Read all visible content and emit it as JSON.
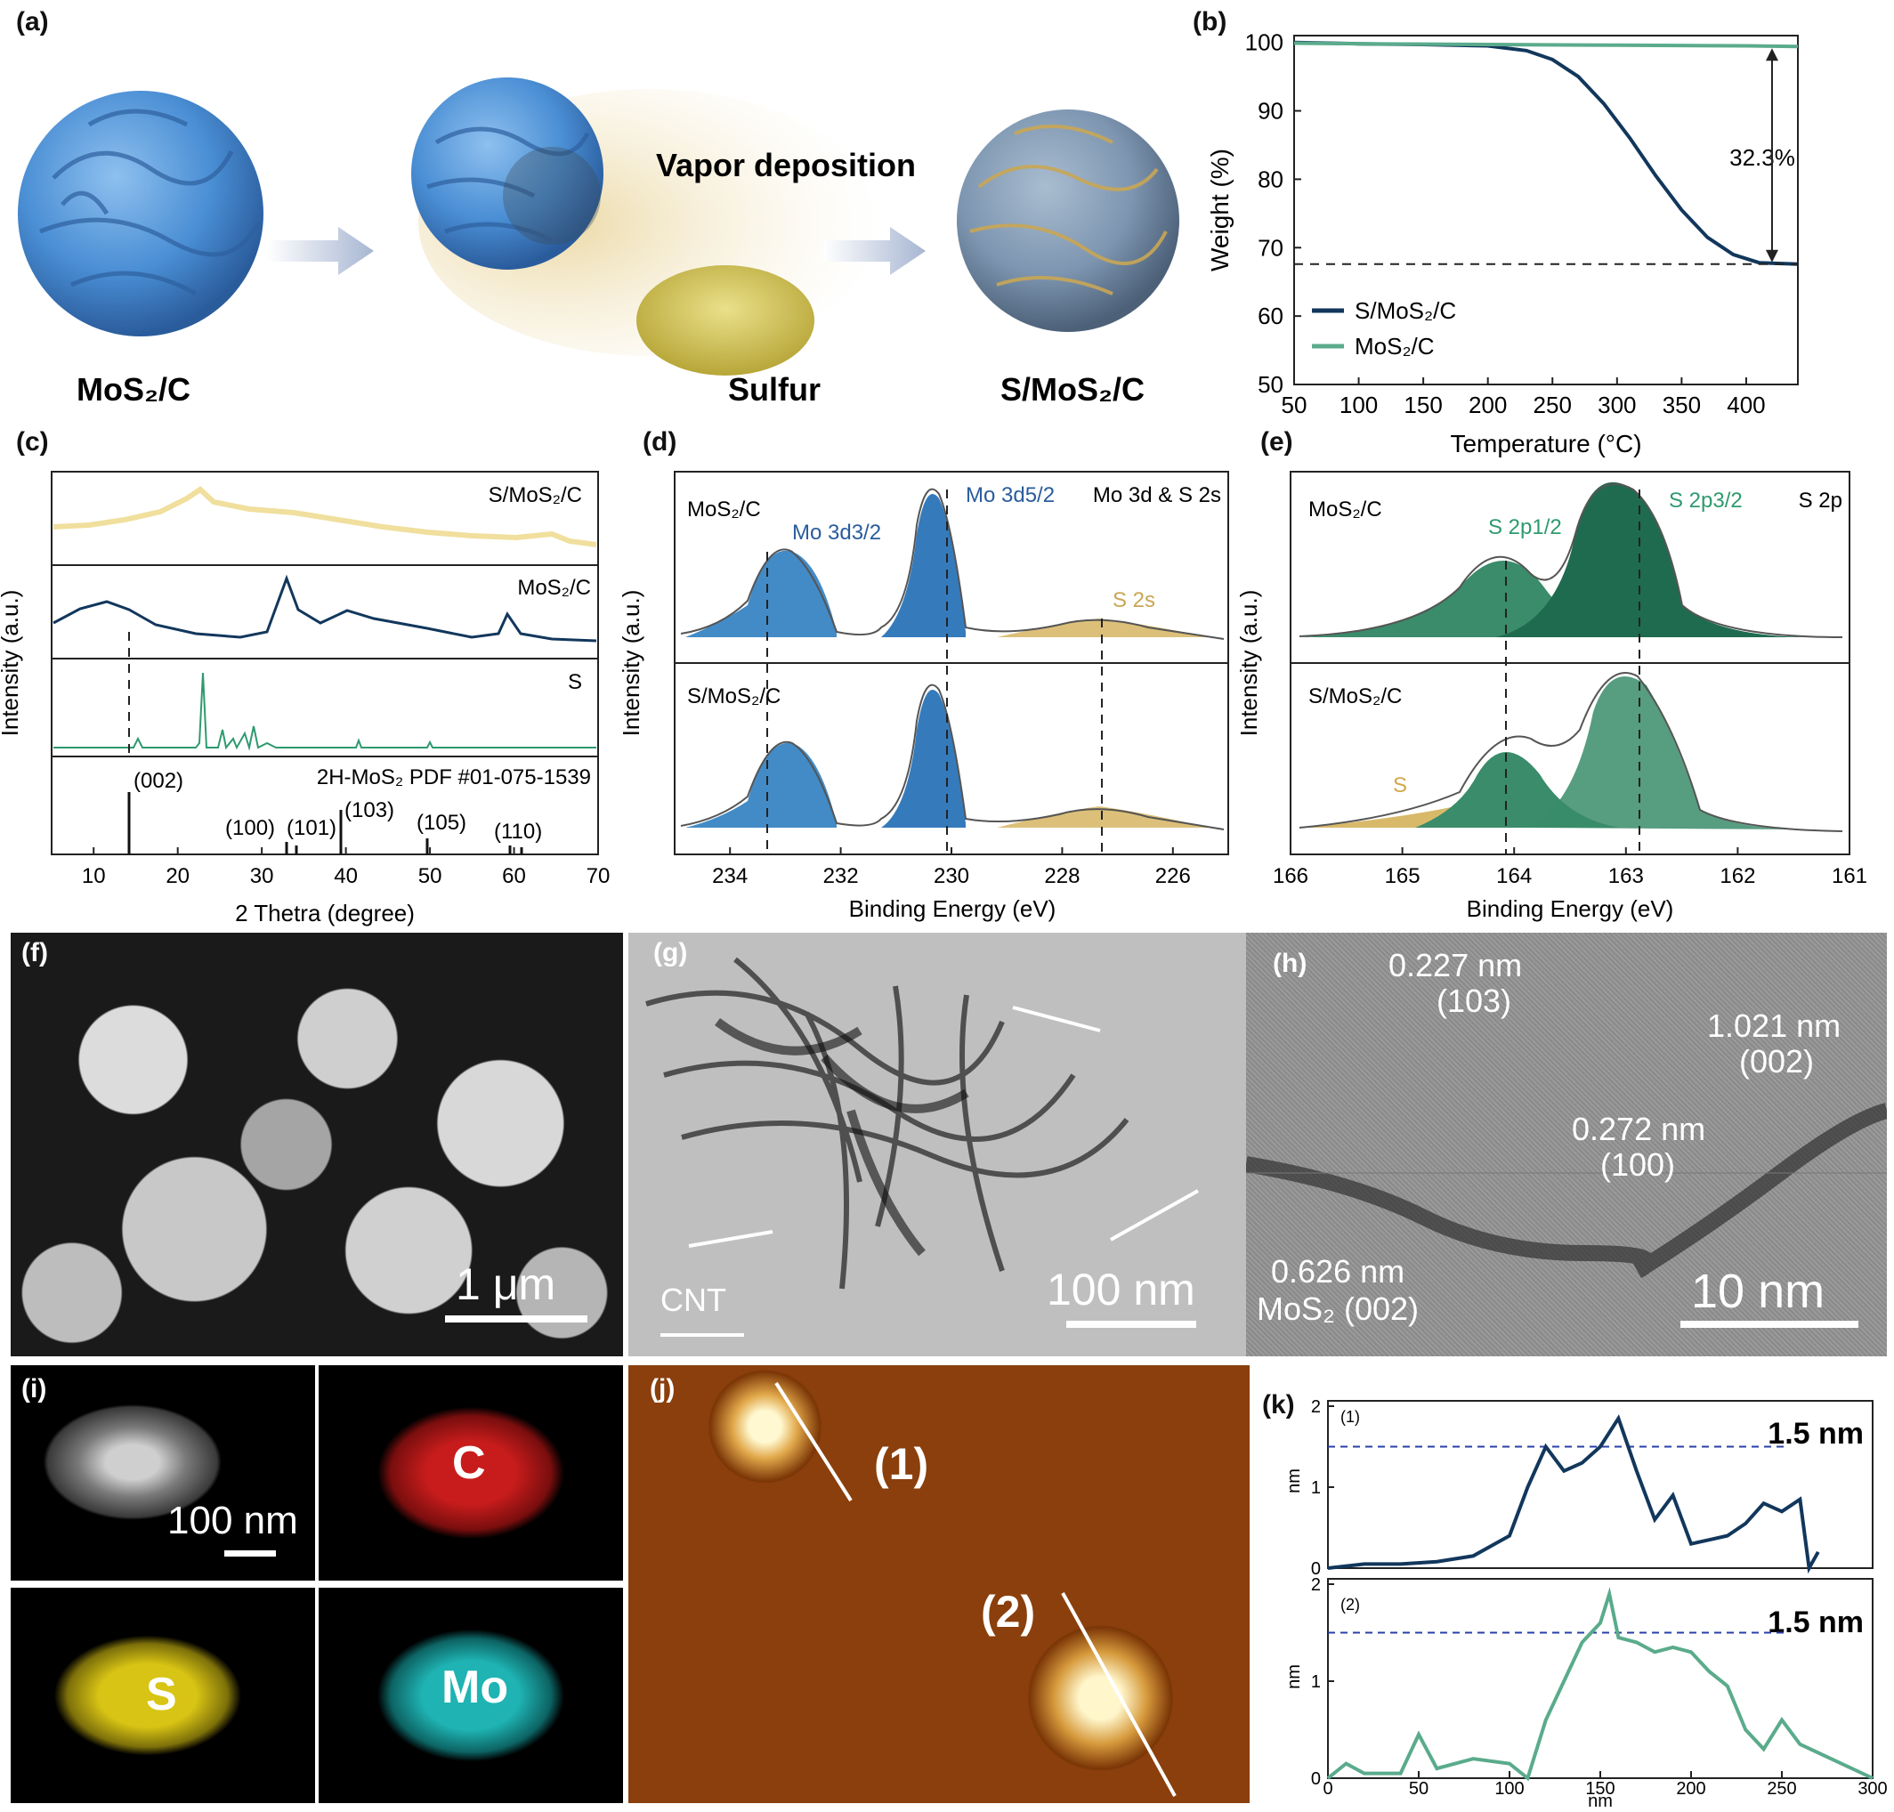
{
  "panel_labels": {
    "a": "(a)",
    "b": "(b)",
    "c": "(c)",
    "d": "(d)",
    "e": "(e)",
    "f": "(f)",
    "g": "(g)",
    "h": "(h)",
    "i": "(i)",
    "j": "(j)",
    "k": "(k)"
  },
  "colors": {
    "navy": "#12375c",
    "teal": "#5aab8c",
    "tealdark": "#1f6b4f",
    "blue": "#2f7ec0",
    "gold": "#d8b96a",
    "yellow": "#f0df9d",
    "sem": "#9a9a9a",
    "afm": "#8b3a08"
  },
  "a": {
    "label_mos2c": "MoS₂/C",
    "label_sulfur": "Sulfur",
    "label_smos2c": "S/MoS₂/C",
    "vapor": "Vapor deposition"
  },
  "b": {
    "xlabel": "Temperature (°C)",
    "ylabel": "Weight (%)",
    "annotation": "32.3%",
    "legend": [
      "S/MoS₂/C",
      "MoS₂/C"
    ],
    "xticks": [
      "50",
      "100",
      "150",
      "200",
      "250",
      "300",
      "350",
      "400"
    ],
    "yticks": [
      "50",
      "60",
      "70",
      "80",
      "90",
      "100"
    ]
  },
  "c": {
    "xlabel": "2 Thetra (degree)",
    "ylabel": "Intensity (a.u.)",
    "xticks": [
      "10",
      "20",
      "30",
      "40",
      "50",
      "60",
      "70"
    ],
    "traces": [
      "S/MoS₂/C",
      "MoS₂/C",
      "S"
    ],
    "pdf_label": "2H-MoS₂ PDF #01-075-1539",
    "peaks": [
      "(002)",
      "(100)",
      "(101)",
      "(103)",
      "(105)",
      "(110)"
    ]
  },
  "d": {
    "xlabel": "Binding Energy (eV)",
    "ylabel": "Intensity (a.u.)",
    "xticks": [
      "234",
      "232",
      "230",
      "228",
      "226"
    ],
    "title": "Mo 3d & S 2s",
    "top": "MoS₂/C",
    "bottom": "S/MoS₂/C",
    "peak1": "Mo 3d3/2",
    "peak2": "Mo 3d5/2",
    "peak3": "S 2s"
  },
  "e": {
    "xlabel": "Binding Energy (eV)",
    "ylabel": "Intensity (a.u.)",
    "xticks": [
      "166",
      "165",
      "164",
      "163",
      "162",
      "161"
    ],
    "title": "S 2p",
    "top": "MoS₂/C",
    "bottom": "S/MoS₂/C",
    "peak1": "S 2p1/2",
    "peak2": "S 2p3/2",
    "peak3": "S"
  },
  "f": {
    "scale": "1 μm"
  },
  "g": {
    "scale": "100 nm",
    "cnt": "CNT"
  },
  "h": {
    "scale": "10 nm",
    "d1": "0.227 nm",
    "p1": "(103)",
    "d2": "1.021 nm",
    "p2": "(002)",
    "d3": "0.272 nm",
    "p3": "(100)",
    "d4": "0.626 nm",
    "p4": "MoS₂ (002)"
  },
  "i": {
    "scale": "100 nm",
    "maps": [
      "C",
      "S",
      "Mo"
    ]
  },
  "j": {
    "m1": "(1)",
    "m2": "(2)"
  },
  "k": {
    "xlabel": "nm",
    "ylabel": "nm",
    "value": "1.5 nm",
    "xticks": [
      "0",
      "50",
      "100",
      "150",
      "200",
      "250",
      "300"
    ],
    "p1": "(1)",
    "p2": "(2)"
  },
  "chart_data": [
    {
      "type": "line",
      "panel": "b",
      "xlabel": "Temperature (°C)",
      "ylabel": "Weight (%)",
      "xlim": [
        50,
        440
      ],
      "ylim": [
        50,
        101
      ],
      "series": [
        {
          "name": "S/MoS₂/C",
          "x": [
            50,
            100,
            150,
            200,
            230,
            250,
            270,
            290,
            310,
            330,
            350,
            370,
            390,
            410,
            440
          ],
          "y": [
            100,
            99.8,
            99.7,
            99.5,
            98.8,
            97.5,
            95,
            91,
            86,
            80.5,
            75.5,
            71.5,
            69,
            67.8,
            67.6
          ]
        },
        {
          "name": "MoS₂/C",
          "x": [
            50,
            100,
            200,
            300,
            400,
            440
          ],
          "y": [
            99.9,
            99.8,
            99.7,
            99.6,
            99.5,
            99.4
          ]
        }
      ],
      "annotation": "32.3%"
    },
    {
      "type": "line",
      "panel": "k",
      "xlabel": "nm",
      "ylabel": "nm",
      "xlim": [
        0,
        300
      ],
      "ylim": [
        0,
        2
      ],
      "series": [
        {
          "name": "(1)",
          "x": [
            0,
            20,
            40,
            60,
            80,
            100,
            110,
            120,
            130,
            140,
            150,
            160,
            170,
            180,
            190,
            200,
            210,
            220,
            230,
            240,
            250,
            260,
            265,
            270
          ],
          "y": [
            0,
            0.05,
            0.05,
            0.08,
            0.15,
            0.4,
            1.0,
            1.5,
            1.2,
            1.3,
            1.5,
            1.85,
            1.2,
            0.6,
            0.9,
            0.3,
            0.35,
            0.4,
            0.55,
            0.8,
            0.7,
            0.85,
            0.0,
            0.2
          ]
        },
        {
          "name": "(2)",
          "x": [
            0,
            10,
            20,
            40,
            50,
            60,
            80,
            100,
            110,
            120,
            130,
            140,
            150,
            155,
            160,
            170,
            180,
            190,
            200,
            210,
            220,
            230,
            240,
            250,
            260,
            300
          ],
          "y": [
            0,
            0.15,
            0.05,
            0.05,
            0.45,
            0.1,
            0.2,
            0.15,
            0.0,
            0.6,
            1.0,
            1.4,
            1.6,
            1.9,
            1.45,
            1.4,
            1.3,
            1.35,
            1.3,
            1.1,
            0.95,
            0.5,
            0.3,
            0.6,
            0.35,
            0.0
          ]
        }
      ],
      "reference": "1.5 nm"
    }
  ]
}
